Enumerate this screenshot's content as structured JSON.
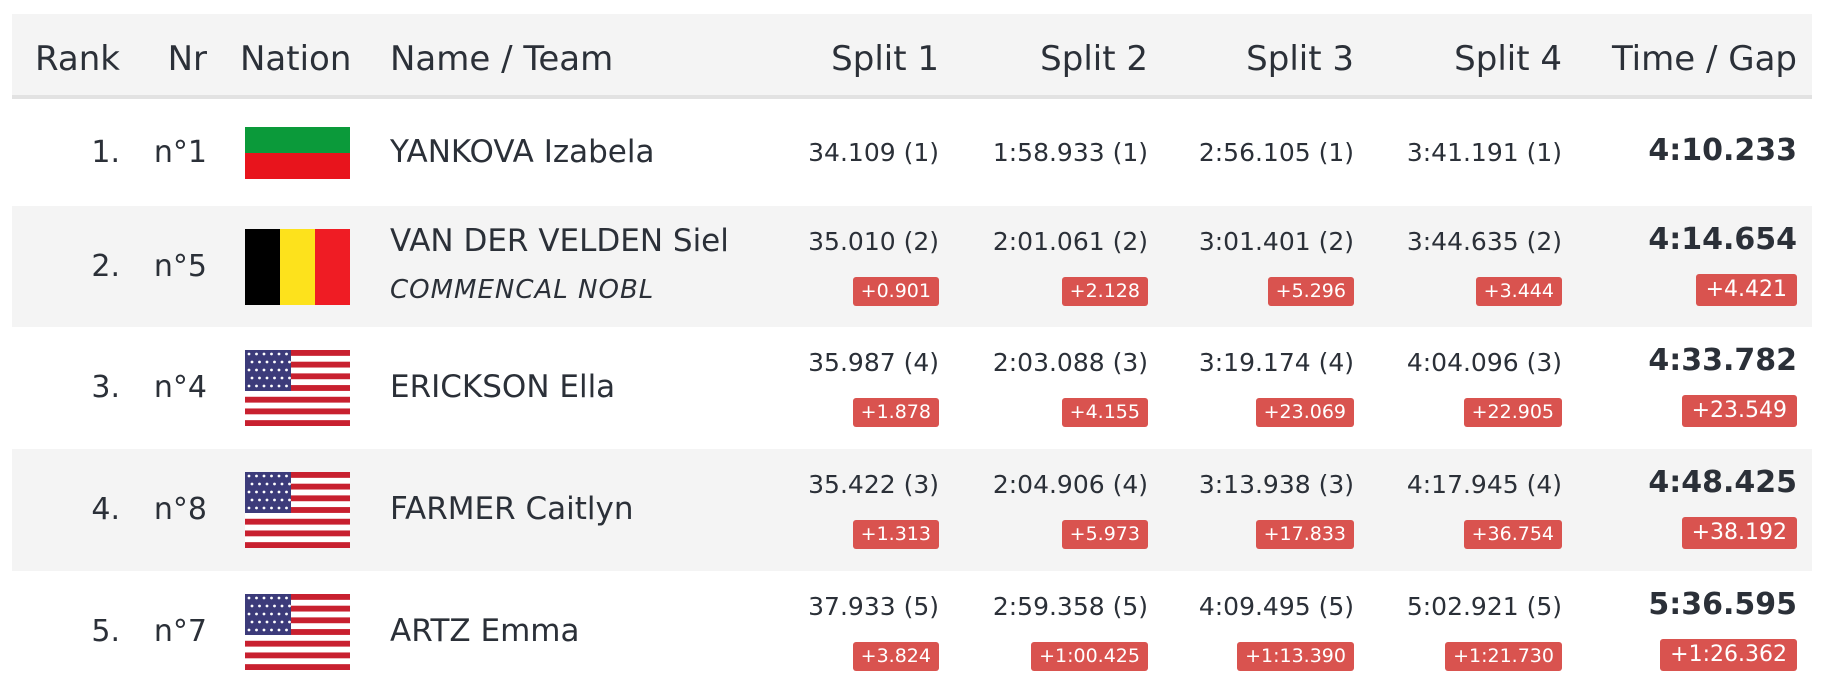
{
  "table": {
    "headers": [
      "Rank",
      "Nr",
      "Nation",
      "Name / Team",
      "Split 1",
      "Split 2",
      "Split 3",
      "Split 4",
      "Time / Gap"
    ],
    "rows": [
      {
        "rank": "1.",
        "nr": "n°1",
        "name": "YANKOVA Izabela",
        "splits": [
          {
            "time": "34.109 (1)"
          },
          {
            "time": "1:58.933 (1)"
          },
          {
            "time": "2:56.105 (1)"
          },
          {
            "time": "3:41.191 (1)"
          }
        ],
        "total": {
          "time": "4:10.233"
        }
      },
      {
        "rank": "2.",
        "nr": "n°5",
        "name": "VAN DER VELDEN Siel",
        "team": "COMMENCAL NOBL",
        "splits": [
          {
            "time": "35.010 (2)",
            "gap": "+0.901"
          },
          {
            "time": "2:01.061 (2)",
            "gap": "+2.128"
          },
          {
            "time": "3:01.401 (2)",
            "gap": "+5.296"
          },
          {
            "time": "3:44.635 (2)",
            "gap": "+3.444"
          }
        ],
        "total": {
          "time": "4:14.654",
          "gap": "+4.421"
        }
      },
      {
        "rank": "3.",
        "nr": "n°4",
        "name": "ERICKSON Ella",
        "splits": [
          {
            "time": "35.987 (4)",
            "gap": "+1.878"
          },
          {
            "time": "2:03.088 (3)",
            "gap": "+4.155"
          },
          {
            "time": "3:19.174 (4)",
            "gap": "+23.069"
          },
          {
            "time": "4:04.096 (3)",
            "gap": "+22.905"
          }
        ],
        "total": {
          "time": "4:33.782",
          "gap": "+23.549"
        }
      },
      {
        "rank": "4.",
        "nr": "n°8",
        "name": "FARMER Caitlyn",
        "splits": [
          {
            "time": "35.422 (3)",
            "gap": "+1.313"
          },
          {
            "time": "2:04.906 (4)",
            "gap": "+5.973"
          },
          {
            "time": "3:13.938 (3)",
            "gap": "+17.833"
          },
          {
            "time": "4:17.945 (4)",
            "gap": "+36.754"
          }
        ],
        "total": {
          "time": "4:48.425",
          "gap": "+38.192"
        }
      },
      {
        "rank": "5.",
        "nr": "n°7",
        "name": "ARTZ Emma",
        "splits": [
          {
            "time": "37.933 (5)",
            "gap": "+3.824"
          },
          {
            "time": "2:59.358 (5)",
            "gap": "+1:00.425"
          },
          {
            "time": "4:09.495 (5)",
            "gap": "+1:13.390"
          },
          {
            "time": "5:02.921 (5)",
            "gap": "+1:21.730"
          }
        ],
        "total": {
          "time": "5:36.595",
          "gap": "+1:26.362"
        }
      }
    ]
  }
}
